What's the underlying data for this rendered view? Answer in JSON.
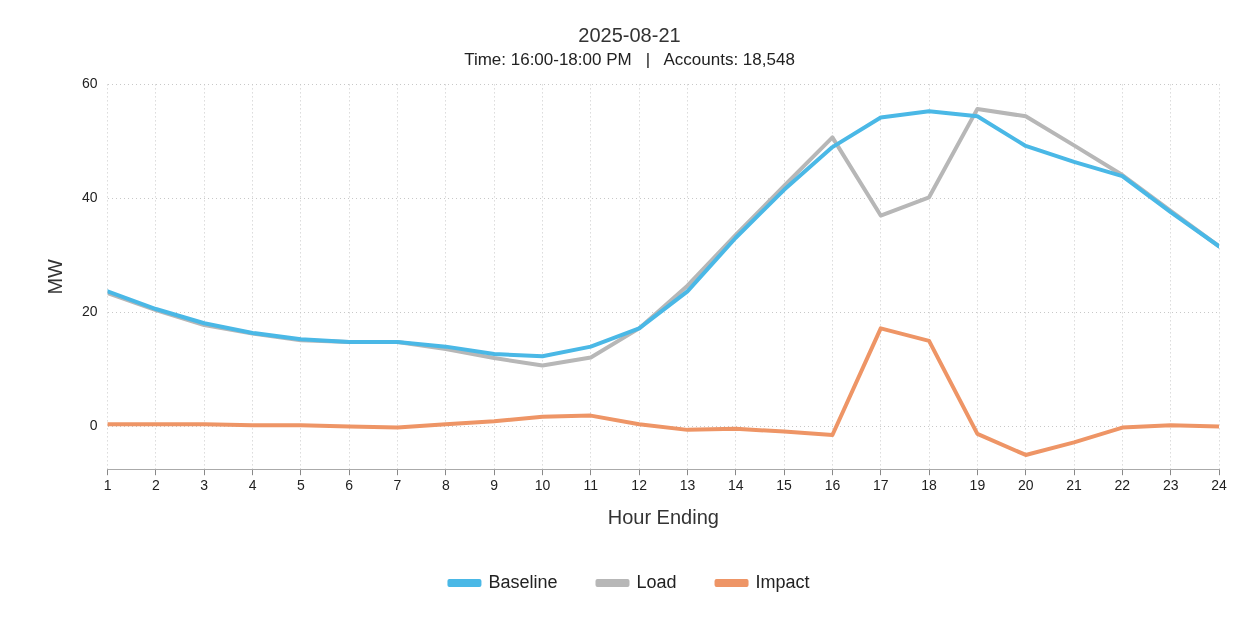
{
  "chart_data": {
    "type": "line",
    "title": "2025-08-21",
    "subtitle": "Time: 16:00-18:00 PM   |   Accounts: 18,548",
    "xlabel": "Hour Ending",
    "ylabel": "MW",
    "x": [
      1,
      2,
      3,
      4,
      5,
      6,
      7,
      8,
      9,
      10,
      11,
      12,
      13,
      14,
      15,
      16,
      17,
      18,
      19,
      20,
      21,
      22,
      23,
      24
    ],
    "xlim": [
      1,
      24
    ],
    "xticks": [
      1,
      2,
      3,
      4,
      5,
      6,
      7,
      8,
      9,
      10,
      11,
      12,
      13,
      14,
      15,
      16,
      17,
      18,
      19,
      20,
      21,
      22,
      23,
      24
    ],
    "ylim": [
      -7.5,
      60
    ],
    "yticks": [
      0,
      20,
      40,
      60
    ],
    "grid": true,
    "legend": "bottom",
    "marker": "none",
    "line_style": "solid",
    "series": [
      {
        "name": "Baseline",
        "color": "#4ab8e6",
        "values": [
          23.7,
          20.6,
          18.1,
          16.4,
          15.3,
          14.8,
          14.8,
          14.0,
          12.7,
          12.3,
          14.0,
          17.2,
          23.7,
          33.1,
          41.5,
          49.0,
          54.2,
          55.3,
          54.4,
          49.2,
          46.4,
          43.9,
          37.6,
          31.6
        ]
      },
      {
        "name": "Load",
        "color": "#b7b7b7",
        "values": [
          23.4,
          20.4,
          17.8,
          16.3,
          15.1,
          14.8,
          14.8,
          13.6,
          12.0,
          10.7,
          12.1,
          17.2,
          24.7,
          33.6,
          42.2,
          50.7,
          37.0,
          40.2,
          55.7,
          54.4,
          49.3,
          44.1,
          37.8,
          31.6
        ]
      },
      {
        "name": "Impact",
        "color": "#ee9566",
        "values": [
          0.4,
          0.4,
          0.4,
          0.2,
          0.2,
          0,
          -0.2,
          0.4,
          0.9,
          1.7,
          1.9,
          0.4,
          -0.6,
          -0.4,
          -0.9,
          -1.5,
          17.2,
          15.0,
          -1.3,
          -5.0,
          -2.8,
          -0.2,
          0.2,
          0
        ]
      }
    ]
  }
}
